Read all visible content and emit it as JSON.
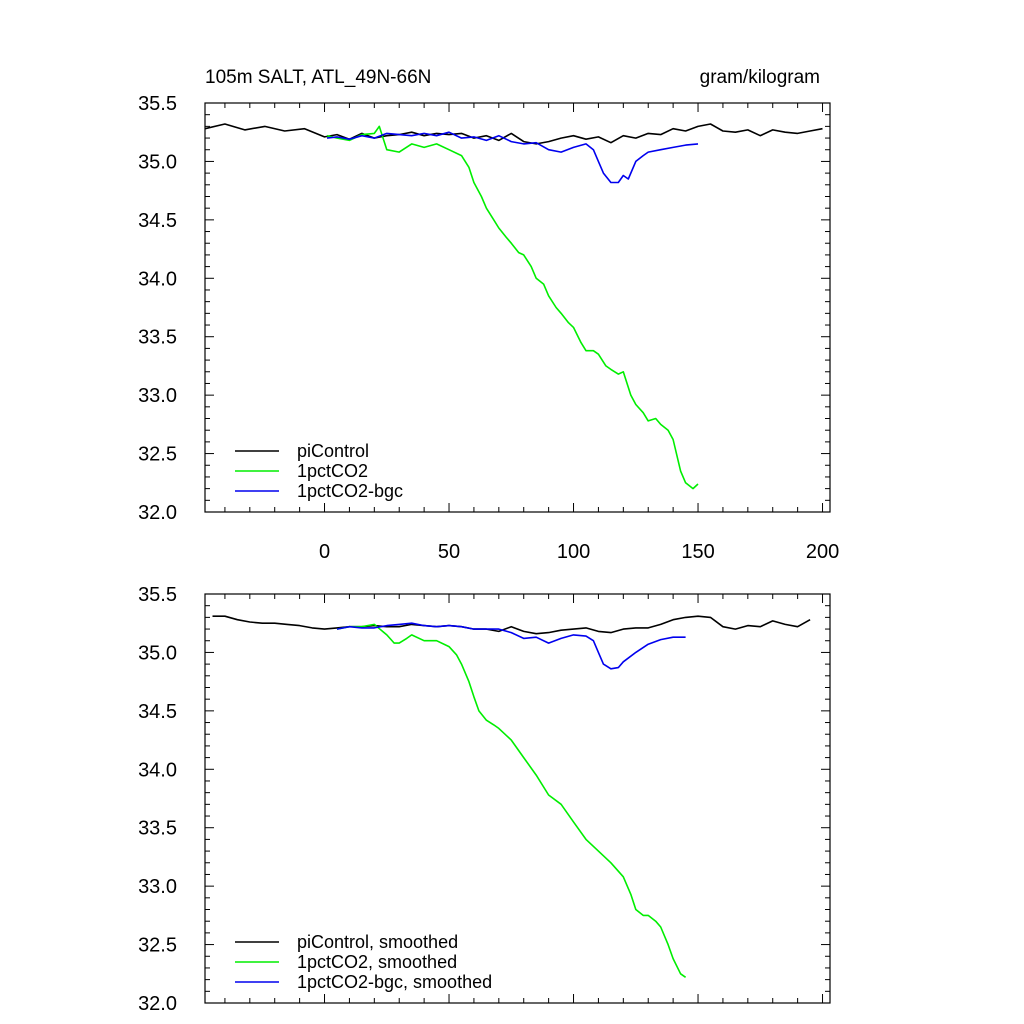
{
  "chart_data": [
    {
      "type": "line",
      "title": "105m SALT, ATL_49N-66N",
      "units": "gram/kilogram",
      "xlim": [
        -48,
        203
      ],
      "ylim": [
        32.0,
        35.5
      ],
      "xticks": [
        0,
        50,
        100,
        150,
        200
      ],
      "xtick_labels": [
        "0",
        "50",
        "100",
        "150",
        "200"
      ],
      "yticks": [
        32.0,
        32.5,
        33.0,
        33.5,
        34.0,
        34.5,
        35.0,
        35.5
      ],
      "ytick_labels": [
        "32.0",
        "32.5",
        "33.0",
        "33.5",
        "34.0",
        "34.5",
        "35.0",
        "35.5"
      ],
      "legend_position": "bottom-left",
      "series": [
        {
          "name": "piControl",
          "color": "#000000",
          "x": [
            -48,
            -40,
            -32,
            -24,
            -16,
            -8,
            0,
            5,
            10,
            15,
            20,
            25,
            30,
            35,
            40,
            45,
            50,
            55,
            60,
            65,
            70,
            75,
            80,
            85,
            90,
            95,
            100,
            105,
            110,
            115,
            120,
            125,
            130,
            135,
            140,
            145,
            150,
            155,
            160,
            165,
            170,
            175,
            180,
            185,
            190,
            195,
            200
          ],
          "y": [
            35.28,
            35.32,
            35.27,
            35.3,
            35.26,
            35.28,
            35.21,
            35.23,
            35.19,
            35.24,
            35.2,
            35.22,
            35.23,
            35.25,
            35.22,
            35.24,
            35.23,
            35.24,
            35.2,
            35.22,
            35.18,
            35.24,
            35.17,
            35.15,
            35.17,
            35.2,
            35.22,
            35.19,
            35.21,
            35.16,
            35.22,
            35.2,
            35.24,
            35.23,
            35.28,
            35.26,
            35.3,
            35.32,
            35.26,
            35.25,
            35.27,
            35.22,
            35.27,
            35.25,
            35.24,
            35.26,
            35.28
          ]
        },
        {
          "name": "1pctCO2",
          "color": "#00ee00",
          "x": [
            1,
            5,
            10,
            15,
            20,
            22,
            25,
            30,
            35,
            40,
            45,
            50,
            55,
            58,
            60,
            63,
            65,
            68,
            70,
            73,
            75,
            78,
            80,
            83,
            85,
            88,
            90,
            93,
            95,
            98,
            100,
            103,
            105,
            108,
            110,
            113,
            115,
            118,
            120,
            123,
            125,
            128,
            130,
            133,
            135,
            138,
            140,
            143,
            145,
            148,
            150
          ],
          "y": [
            35.22,
            35.2,
            35.18,
            35.23,
            35.24,
            35.3,
            35.1,
            35.08,
            35.15,
            35.12,
            35.15,
            35.1,
            35.05,
            34.95,
            34.82,
            34.7,
            34.6,
            34.5,
            34.43,
            34.35,
            34.3,
            34.22,
            34.2,
            34.1,
            34.0,
            33.95,
            33.85,
            33.75,
            33.7,
            33.62,
            33.58,
            33.45,
            33.38,
            33.38,
            33.35,
            33.25,
            33.22,
            33.18,
            33.2,
            33.0,
            32.92,
            32.85,
            32.78,
            32.8,
            32.75,
            32.7,
            32.62,
            32.35,
            32.25,
            32.2,
            32.24
          ]
        },
        {
          "name": "1pctCO2-bgc",
          "color": "#0000ee",
          "x": [
            1,
            5,
            10,
            15,
            20,
            25,
            30,
            35,
            40,
            45,
            50,
            55,
            60,
            65,
            70,
            75,
            80,
            85,
            90,
            95,
            100,
            105,
            108,
            110,
            112,
            115,
            118,
            120,
            122,
            125,
            128,
            130,
            135,
            140,
            145,
            150
          ],
          "y": [
            35.2,
            35.21,
            35.19,
            35.22,
            35.2,
            35.24,
            35.23,
            35.22,
            35.24,
            35.22,
            35.25,
            35.2,
            35.21,
            35.18,
            35.22,
            35.17,
            35.15,
            35.16,
            35.1,
            35.08,
            35.12,
            35.15,
            35.1,
            35.0,
            34.9,
            34.82,
            34.82,
            34.88,
            34.85,
            35.0,
            35.05,
            35.08,
            35.1,
            35.12,
            35.14,
            35.15
          ]
        }
      ]
    },
    {
      "type": "line",
      "xlim": [
        -48,
        203
      ],
      "ylim": [
        32.0,
        35.5
      ],
      "xticks": [
        0,
        50,
        100,
        150,
        200
      ],
      "yticks": [
        32.0,
        32.5,
        33.0,
        33.5,
        34.0,
        34.5,
        35.0,
        35.5
      ],
      "ytick_labels": [
        "32.0",
        "32.5",
        "33.0",
        "33.5",
        "34.0",
        "34.5",
        "35.0",
        "35.5"
      ],
      "legend_position": "bottom-left",
      "series": [
        {
          "name": "piControl, smoothed",
          "color": "#000000",
          "x": [
            -45,
            -40,
            -35,
            -30,
            -25,
            -20,
            -15,
            -10,
            -5,
            0,
            5,
            10,
            15,
            20,
            25,
            30,
            35,
            40,
            45,
            50,
            55,
            60,
            65,
            70,
            75,
            80,
            85,
            90,
            95,
            100,
            105,
            110,
            115,
            120,
            125,
            130,
            135,
            140,
            145,
            150,
            155,
            160,
            165,
            170,
            175,
            180,
            185,
            190,
            195
          ],
          "y": [
            35.31,
            35.31,
            35.28,
            35.26,
            35.25,
            35.25,
            35.24,
            35.23,
            35.21,
            35.2,
            35.21,
            35.22,
            35.22,
            35.23,
            35.22,
            35.22,
            35.24,
            35.23,
            35.22,
            35.23,
            35.22,
            35.2,
            35.2,
            35.18,
            35.22,
            35.18,
            35.16,
            35.17,
            35.19,
            35.2,
            35.21,
            35.18,
            35.17,
            35.2,
            35.21,
            35.21,
            35.24,
            35.28,
            35.3,
            35.31,
            35.3,
            35.22,
            35.2,
            35.23,
            35.22,
            35.27,
            35.24,
            35.22,
            35.28
          ]
        },
        {
          "name": "1pctCO2, smoothed",
          "color": "#00ee00",
          "x": [
            5,
            10,
            15,
            20,
            25,
            28,
            30,
            33,
            35,
            40,
            45,
            50,
            53,
            55,
            58,
            60,
            62,
            65,
            68,
            70,
            75,
            80,
            85,
            90,
            95,
            100,
            105,
            110,
            115,
            120,
            123,
            125,
            128,
            130,
            133,
            135,
            138,
            140,
            143,
            145
          ],
          "y": [
            35.2,
            35.22,
            35.22,
            35.24,
            35.15,
            35.08,
            35.08,
            35.12,
            35.15,
            35.1,
            35.1,
            35.05,
            34.98,
            34.9,
            34.75,
            34.62,
            34.5,
            34.42,
            34.38,
            34.35,
            34.25,
            34.1,
            33.95,
            33.78,
            33.7,
            33.55,
            33.4,
            33.3,
            33.2,
            33.08,
            32.93,
            32.8,
            32.75,
            32.75,
            32.7,
            32.65,
            32.5,
            32.38,
            32.25,
            32.22
          ]
        },
        {
          "name": "1pctCO2-bgc, smoothed",
          "color": "#0000ee",
          "x": [
            5,
            10,
            15,
            20,
            25,
            30,
            35,
            40,
            45,
            50,
            55,
            60,
            65,
            70,
            75,
            80,
            85,
            90,
            95,
            100,
            105,
            108,
            110,
            112,
            115,
            118,
            120,
            125,
            130,
            135,
            140,
            145
          ],
          "y": [
            35.2,
            35.22,
            35.21,
            35.21,
            35.23,
            35.24,
            35.25,
            35.23,
            35.22,
            35.23,
            35.22,
            35.2,
            35.2,
            35.2,
            35.17,
            35.12,
            35.13,
            35.08,
            35.12,
            35.15,
            35.14,
            35.1,
            35.0,
            34.9,
            34.86,
            34.87,
            34.92,
            35.0,
            35.07,
            35.11,
            35.13,
            35.13
          ]
        }
      ]
    }
  ]
}
